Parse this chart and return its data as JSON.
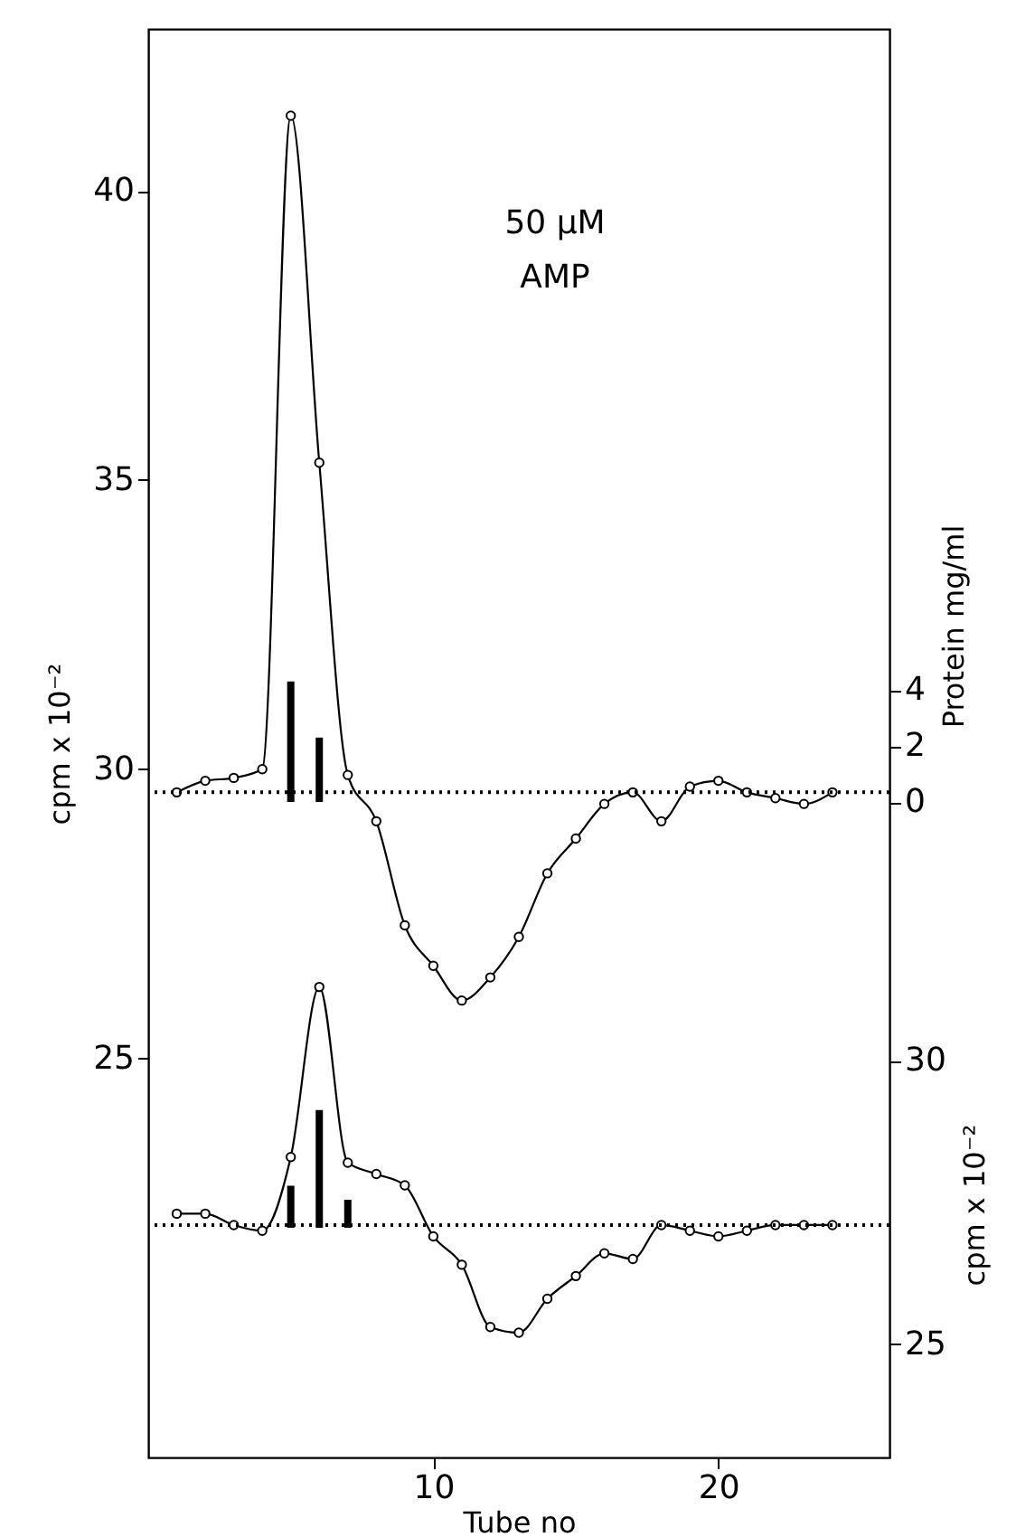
{
  "chart_data": {
    "type": "line",
    "xlabel": "Tube no",
    "ylabel": "cpm x 10⁻²",
    "y2label": "cpm x 10⁻²",
    "y3label": "Protein mg/ml",
    "annotations": [
      "50 μM\nAMP"
    ],
    "xlim": [
      0,
      26
    ],
    "xticks": [
      10,
      20
    ],
    "ylim": [
      18.1,
      42.8
    ],
    "yticks": [
      25,
      30,
      35,
      40
    ],
    "y2lim": [
      23.0,
      48.2
    ],
    "y2ticks": [
      25,
      30
    ],
    "y3lim": [
      -23.4,
      27.6
    ],
    "y3ticks": [
      0,
      2,
      4
    ],
    "marker": "circle",
    "grid": false,
    "ref_lines": [
      {
        "axis": "y",
        "value": 29.6,
        "line_style": "dotted"
      },
      {
        "axis": "y2",
        "value": 27.1,
        "line_style": "dotted"
      }
    ],
    "series": [
      {
        "color": "#000000",
        "x": [
          1,
          2,
          3,
          4,
          5,
          6,
          7,
          8,
          9,
          10,
          11,
          12,
          13,
          14,
          15,
          16,
          17,
          18,
          19,
          20,
          21,
          22,
          23,
          24
        ],
        "values": [
          29.6,
          29.8,
          29.85,
          30.0,
          41.3,
          35.3,
          29.9,
          29.1,
          27.3,
          26.6,
          26.0,
          26.4,
          27.1,
          28.2,
          28.8,
          29.4,
          29.6,
          29.1,
          29.7,
          29.8,
          29.6,
          29.5,
          29.4,
          29.6
        ]
      },
      {
        "axis": "y2",
        "color": "#000000",
        "x": [
          1,
          2,
          3,
          4,
          5,
          6,
          7,
          8,
          9,
          10,
          11,
          12,
          13,
          14,
          15,
          16,
          17,
          18,
          19,
          20,
          21,
          22,
          23,
          24
        ],
        "values": [
          27.3,
          27.3,
          27.1,
          27.0,
          28.3,
          31.3,
          28.2,
          28.0,
          27.8,
          26.9,
          26.4,
          25.3,
          25.2,
          25.8,
          26.2,
          26.6,
          26.5,
          27.1,
          27.0,
          26.9,
          27.0,
          27.1,
          27.1,
          27.1
        ]
      },
      {
        "type": "bar",
        "axis": "y3",
        "color": "#000000",
        "x": [
          5,
          6
        ],
        "values": [
          4.3,
          2.3
        ],
        "base": [
          0,
          0
        ]
      },
      {
        "type": "bar",
        "axis": "y3",
        "color": "#000000",
        "x": [
          5,
          6,
          7
        ],
        "values": [
          1.5,
          4.2,
          1.0
        ],
        "base": [
          -15.2,
          -15.2,
          -15.2
        ]
      }
    ]
  }
}
